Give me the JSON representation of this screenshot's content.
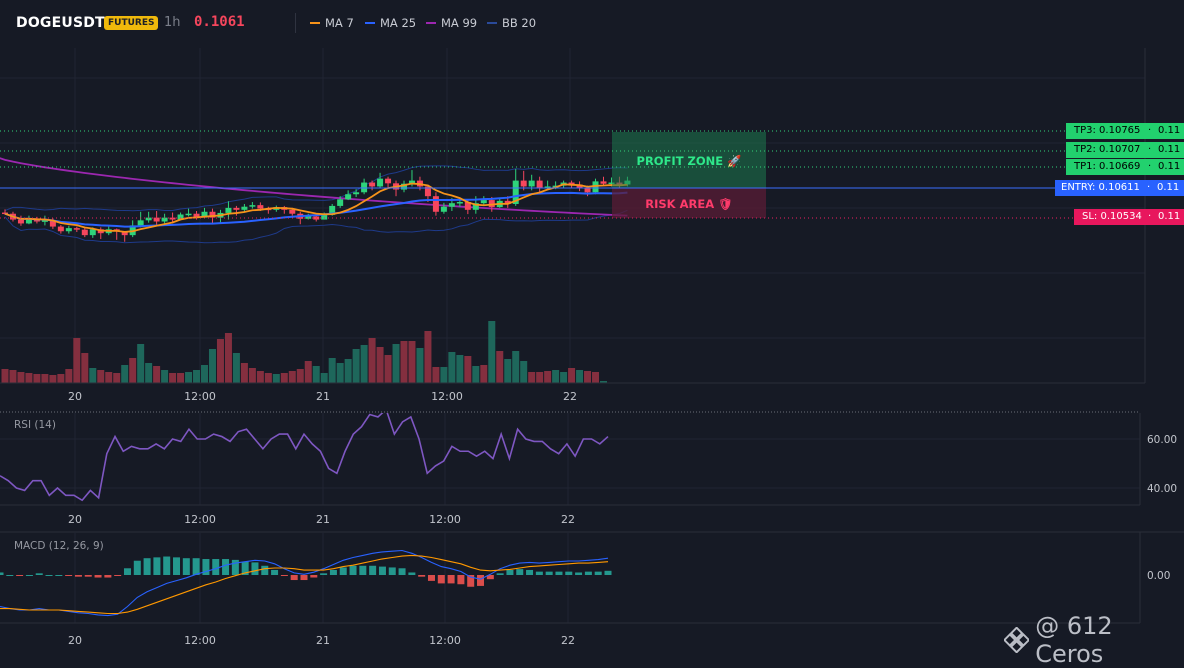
{
  "header": {
    "symbol": "DOGEUSDT",
    "badge": "FUTURES",
    "timeframe": "1h",
    "last_price": "0.1061",
    "indicators": [
      {
        "label": "MA 7",
        "color": "#f7931a"
      },
      {
        "label": "MA 25",
        "color": "#2962ff"
      },
      {
        "label": "MA 99",
        "color": "#9c27b0"
      },
      {
        "label": "BB 20",
        "color": "#1e3a8a"
      }
    ]
  },
  "colors": {
    "up": "#26a69a",
    "down": "#ef5350",
    "candle_up": "#2ed47a",
    "candle_down": "#f6465d",
    "entry": "#2962ff",
    "sl": "#e91e63",
    "tp": "#00e676",
    "rsi": "#7e57c2"
  },
  "zones": {
    "profit": "PROFIT ZONE 🚀",
    "risk": "RISK AREA 🛡"
  },
  "levels": {
    "tp3": {
      "label": "TP3: 0.10765",
      "size": "0.11"
    },
    "tp2": {
      "label": "TP2: 0.10707",
      "size": "0.11"
    },
    "tp1": {
      "label": "TP1: 0.10669",
      "size": "0.11"
    },
    "entry": {
      "label": "ENTRY: 0.10611",
      "size": "0.11"
    },
    "sl": {
      "label": "SL: 0.10534",
      "size": "0.11"
    }
  },
  "time_labels": [
    "20",
    "12:00",
    "21",
    "12:00",
    "22"
  ],
  "rsi": {
    "title": "RSI (14)",
    "ticks": [
      "60.00",
      "40.00"
    ],
    "values": [
      45,
      43,
      40,
      39,
      43,
      43,
      37,
      40,
      37,
      37,
      35,
      39,
      36,
      54,
      61,
      55,
      57,
      56,
      56,
      58,
      56,
      60,
      59,
      64,
      60,
      60,
      62,
      61,
      59,
      63,
      64,
      60,
      56,
      60,
      62,
      62,
      56,
      62,
      58,
      55,
      48,
      46,
      55,
      62,
      65,
      70,
      69,
      72,
      62,
      67,
      69,
      60,
      46,
      49,
      51,
      57,
      55,
      55,
      53,
      55,
      52,
      62,
      52,
      64,
      60,
      59,
      59,
      56,
      54,
      58,
      53,
      60,
      60,
      58,
      61
    ]
  },
  "macd": {
    "title": "MACD (12, 26, 9)",
    "ticks": [
      "0.00"
    ],
    "macd_values": [
      -0.00045,
      -0.00048,
      -0.0005,
      -0.0005,
      -0.00048,
      -0.0005,
      -0.0005,
      -0.00052,
      -0.00054,
      -0.00055,
      -0.00057,
      -0.00058,
      -0.00056,
      -0.00045,
      -0.00032,
      -0.00024,
      -0.00018,
      -0.00012,
      -8e-05,
      -4e-05,
      1e-05,
      5e-05,
      9e-05,
      0.00014,
      0.00017,
      0.00019,
      0.00021,
      0.0002,
      0.00016,
      9e-05,
      3e-05,
      1e-05,
      4e-05,
      9e-05,
      0.00015,
      0.00021,
      0.00025,
      0.00028,
      0.00031,
      0.00033,
      0.00034,
      0.00035,
      0.00031,
      0.00025,
      0.00018,
      0.00012,
      9e-05,
      5e-05,
      -3e-05,
      -6e-05,
      1e-05,
      9e-05,
      0.00014,
      0.00017,
      0.00018,
      0.00017,
      0.00018,
      0.00019,
      0.0002,
      0.0002,
      0.00021,
      0.00022,
      0.00024
    ],
    "signal_values": [
      -0.00048,
      -0.00048,
      -0.00049,
      -0.0005,
      -0.0005,
      -0.0005,
      -0.0005,
      -0.00051,
      -0.00052,
      -0.00053,
      -0.00054,
      -0.00055,
      -0.00055,
      -0.00053,
      -0.00049,
      -0.00044,
      -0.00039,
      -0.00034,
      -0.00029,
      -0.00024,
      -0.00019,
      -0.00014,
      -0.0001,
      -5e-05,
      -1e-05,
      3e-05,
      6e-05,
      9e-05,
      0.0001,
      0.0001,
      9e-05,
      7e-05,
      7e-05,
      7e-05,
      9e-05,
      0.00012,
      0.00014,
      0.00017,
      0.0002,
      0.00023,
      0.00025,
      0.00027,
      0.00028,
      0.00027,
      0.00025,
      0.00022,
      0.00019,
      0.00016,
      0.00011,
      7e-05,
      6e-05,
      7e-05,
      8e-05,
      0.0001,
      0.00012,
      0.00013,
      0.00014,
      0.00015,
      0.00016,
      0.00017,
      0.00017,
      0.00018,
      0.00019
    ]
  },
  "candles": [
    [
      0.10548,
      0.10545,
      0.10556,
      0.10542
    ],
    [
      0.10545,
      0.1053,
      0.1055,
      0.10525
    ],
    [
      0.1053,
      0.1052,
      0.1054,
      0.10514
    ],
    [
      0.1052,
      0.10533,
      0.1054,
      0.10518
    ],
    [
      0.10533,
      0.10525,
      0.10537,
      0.1052
    ],
    [
      0.10525,
      0.10528,
      0.1054,
      0.10515
    ],
    [
      0.10528,
      0.10512,
      0.10533,
      0.10506
    ],
    [
      0.10512,
      0.105,
      0.10516,
      0.10494
    ],
    [
      0.105,
      0.10508,
      0.10514,
      0.10494
    ],
    [
      0.10508,
      0.10504,
      0.10512,
      0.10498
    ],
    [
      0.10504,
      0.1049,
      0.1051,
      0.10485
    ],
    [
      0.1049,
      0.10505,
      0.1051,
      0.10483
    ],
    [
      0.10505,
      0.10495,
      0.1051,
      0.1048
    ],
    [
      0.10495,
      0.10505,
      0.10512,
      0.1049
    ],
    [
      0.10505,
      0.105,
      0.10507,
      0.10478
    ],
    [
      0.105,
      0.1049,
      0.105,
      0.10473
    ],
    [
      0.1049,
      0.10515,
      0.10528,
      0.10485
    ],
    [
      0.10515,
      0.10528,
      0.1055,
      0.1051
    ],
    [
      0.10528,
      0.10535,
      0.1055,
      0.10522
    ],
    [
      0.10535,
      0.10525,
      0.10552,
      0.10515
    ],
    [
      0.10525,
      0.10535,
      0.10545,
      0.1052
    ],
    [
      0.10535,
      0.1053,
      0.10548,
      0.1052
    ],
    [
      0.1053,
      0.10543,
      0.10548,
      0.10528
    ],
    [
      0.10543,
      0.10545,
      0.10558,
      0.10538
    ],
    [
      0.10545,
      0.10535,
      0.10552,
      0.1053
    ],
    [
      0.10535,
      0.1055,
      0.1056,
      0.10533
    ],
    [
      0.1055,
      0.10535,
      0.10558,
      0.10518
    ],
    [
      0.10535,
      0.10547,
      0.10555,
      0.1052
    ],
    [
      0.10547,
      0.1056,
      0.10577,
      0.1053
    ],
    [
      0.1056,
      0.10555,
      0.10565,
      0.1054
    ],
    [
      0.10555,
      0.10563,
      0.1057,
      0.1055
    ],
    [
      0.10563,
      0.10567,
      0.10575,
      0.10558
    ],
    [
      0.10567,
      0.10558,
      0.10574,
      0.10552
    ],
    [
      0.10558,
      0.10555,
      0.10563,
      0.10545
    ],
    [
      0.10555,
      0.10562,
      0.10566,
      0.1055
    ],
    [
      0.10562,
      0.10555,
      0.10565,
      0.10545
    ],
    [
      0.10555,
      0.10545,
      0.1056,
      0.1054
    ],
    [
      0.10545,
      0.10532,
      0.1055,
      0.10518
    ],
    [
      0.10532,
      0.10538,
      0.10545,
      0.1053
    ],
    [
      0.10538,
      0.1053,
      0.10545,
      0.10525
    ],
    [
      0.1053,
      0.10542,
      0.10548,
      0.1053
    ],
    [
      0.10542,
      0.10565,
      0.1057,
      0.1054
    ],
    [
      0.10565,
      0.10582,
      0.1059,
      0.1056
    ],
    [
      0.10582,
      0.10595,
      0.10605,
      0.1058
    ],
    [
      0.10595,
      0.106,
      0.10608,
      0.10588
    ],
    [
      0.106,
      0.10625,
      0.10635,
      0.10595
    ],
    [
      0.10625,
      0.10615,
      0.1063,
      0.10605
    ],
    [
      0.10615,
      0.10635,
      0.1065,
      0.10612
    ],
    [
      0.10635,
      0.10623,
      0.1064,
      0.10612
    ],
    [
      0.10623,
      0.10607,
      0.1063,
      0.1059
    ],
    [
      0.10607,
      0.10622,
      0.1063,
      0.106
    ],
    [
      0.10622,
      0.1063,
      0.10657,
      0.10615
    ],
    [
      0.1063,
      0.10615,
      0.1064,
      0.10605
    ],
    [
      0.10615,
      0.1059,
      0.1062,
      0.10575
    ],
    [
      0.1059,
      0.1055,
      0.106,
      0.1054
    ],
    [
      0.1055,
      0.10563,
      0.10573,
      0.10545
    ],
    [
      0.10563,
      0.10572,
      0.10585,
      0.10552
    ],
    [
      0.10572,
      0.10575,
      0.10585,
      0.10563
    ],
    [
      0.10575,
      0.10555,
      0.1058,
      0.10544
    ],
    [
      0.10555,
      0.10572,
      0.1059,
      0.10545
    ],
    [
      0.10572,
      0.1058,
      0.1059,
      0.10565
    ],
    [
      0.1058,
      0.10562,
      0.10588,
      0.1055
    ],
    [
      0.10562,
      0.10578,
      0.10585,
      0.1056
    ],
    [
      0.10578,
      0.1057,
      0.1059,
      0.1056
    ],
    [
      0.1057,
      0.1063,
      0.1066,
      0.10565
    ],
    [
      0.1063,
      0.10615,
      0.10655,
      0.10605
    ],
    [
      0.10615,
      0.1063,
      0.10645,
      0.10605
    ],
    [
      0.1063,
      0.10612,
      0.1064,
      0.106
    ],
    [
      0.10612,
      0.10615,
      0.1063,
      0.10605
    ],
    [
      0.10615,
      0.10617,
      0.10628,
      0.10608
    ],
    [
      0.10617,
      0.10625,
      0.1063,
      0.10612
    ],
    [
      0.10625,
      0.1062,
      0.1063,
      0.1061
    ],
    [
      0.1062,
      0.1061,
      0.10628,
      0.10603
    ],
    [
      0.1061,
      0.106,
      0.10617,
      0.1059
    ],
    [
      0.106,
      0.10628,
      0.10635,
      0.10595
    ],
    [
      0.10628,
      0.10622,
      0.1064,
      0.10618
    ],
    [
      0.10622,
      0.10625,
      0.10638,
      0.10615
    ],
    [
      0.10625,
      0.1062,
      0.1064,
      0.10612
    ],
    [
      0.1062,
      0.1063,
      0.1064,
      0.10615
    ]
  ],
  "volumes": [
    [
      14,
      "d"
    ],
    [
      13,
      "d"
    ],
    [
      11,
      "d"
    ],
    [
      10,
      "d"
    ],
    [
      9,
      "d"
    ],
    [
      9,
      "d"
    ],
    [
      8,
      "d"
    ],
    [
      9,
      "d"
    ],
    [
      14,
      "d"
    ],
    [
      45,
      "d"
    ],
    [
      30,
      "d"
    ],
    [
      15,
      "u"
    ],
    [
      13,
      "d"
    ],
    [
      11,
      "d"
    ],
    [
      10,
      "d"
    ],
    [
      18,
      "u"
    ],
    [
      25,
      "d"
    ],
    [
      39,
      "u"
    ],
    [
      20,
      "u"
    ],
    [
      17,
      "d"
    ],
    [
      13,
      "u"
    ],
    [
      10,
      "d"
    ],
    [
      10,
      "d"
    ],
    [
      11,
      "u"
    ],
    [
      13,
      "u"
    ],
    [
      18,
      "u"
    ],
    [
      34,
      "u"
    ],
    [
      44,
      "d"
    ],
    [
      50,
      "d"
    ],
    [
      30,
      "u"
    ],
    [
      20,
      "d"
    ],
    [
      15,
      "d"
    ],
    [
      12,
      "d"
    ],
    [
      10,
      "d"
    ],
    [
      9,
      "u"
    ],
    [
      10,
      "d"
    ],
    [
      12,
      "d"
    ],
    [
      14,
      "d"
    ],
    [
      22,
      "d"
    ],
    [
      17,
      "u"
    ],
    [
      10,
      "u"
    ],
    [
      25,
      "u"
    ],
    [
      20,
      "u"
    ],
    [
      24,
      "u"
    ],
    [
      34,
      "u"
    ],
    [
      38,
      "u"
    ],
    [
      45,
      "d"
    ],
    [
      36,
      "d"
    ],
    [
      28,
      "d"
    ],
    [
      39,
      "u"
    ],
    [
      42,
      "d"
    ],
    [
      42,
      "d"
    ],
    [
      35,
      "u"
    ],
    [
      52,
      "d"
    ],
    [
      16,
      "d"
    ],
    [
      16,
      "u"
    ],
    [
      31,
      "u"
    ],
    [
      28,
      "u"
    ],
    [
      27,
      "d"
    ],
    [
      17,
      "u"
    ],
    [
      18,
      "d"
    ],
    [
      62,
      "u"
    ],
    [
      32,
      "d"
    ],
    [
      24,
      "u"
    ],
    [
      32,
      "u"
    ],
    [
      22,
      "u"
    ],
    [
      11,
      "d"
    ],
    [
      11,
      "d"
    ],
    [
      12,
      "d"
    ],
    [
      13,
      "u"
    ],
    [
      11,
      "u"
    ],
    [
      15,
      "d"
    ],
    [
      13,
      "u"
    ],
    [
      12,
      "d"
    ],
    [
      11,
      "d"
    ],
    [
      2,
      "u"
    ]
  ]
}
